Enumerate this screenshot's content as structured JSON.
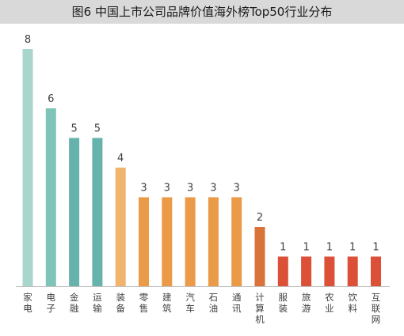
{
  "chart_data": {
    "type": "bar",
    "title": "图6  中国上市公司品牌价值海外榜Top50行业分布",
    "categories": [
      "家电",
      "电子",
      "金融",
      "运输",
      "装备",
      "零售",
      "建筑",
      "汽车",
      "石油",
      "通讯",
      "计算机",
      "服装",
      "旅游",
      "农业",
      "饮料",
      "互联网"
    ],
    "values": [
      8,
      6,
      5,
      5,
      4,
      3,
      3,
      3,
      3,
      3,
      2,
      1,
      1,
      1,
      1,
      1
    ],
    "colors": [
      "#a8d5cc",
      "#7fc4b8",
      "#66b3ad",
      "#66b3ad",
      "#f0b46e",
      "#eb9a48",
      "#eb9a48",
      "#eb9a48",
      "#eb9a48",
      "#eb9a48",
      "#d9733a",
      "#dd5038",
      "#dd5038",
      "#dd5038",
      "#dd5038",
      "#dd5038"
    ],
    "ylim": [
      0,
      8
    ],
    "axis_color": "#bfbfbf",
    "label_color": "#404040",
    "grid": false,
    "legend": "none"
  }
}
